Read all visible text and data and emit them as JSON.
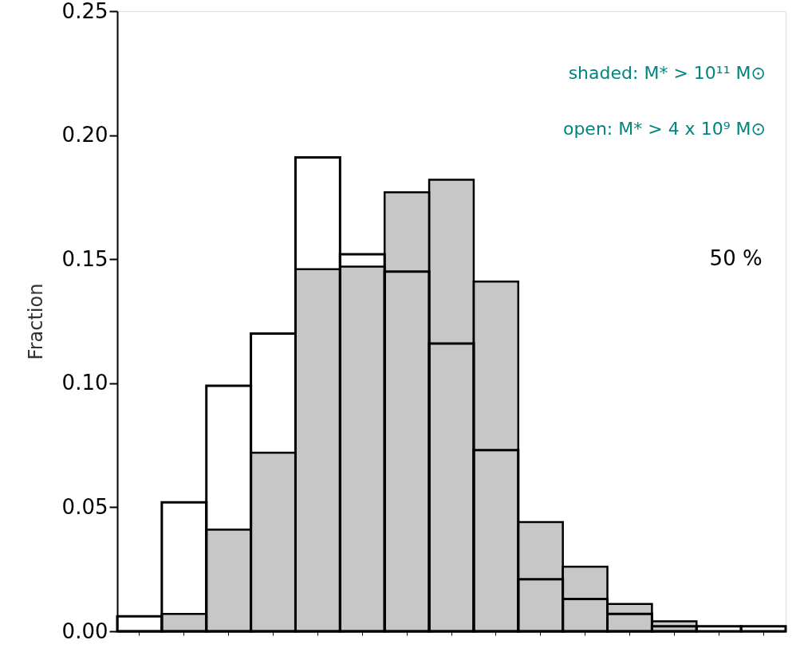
{
  "chart_data": {
    "type": "bar",
    "ylabel": "Fraction",
    "categories": [
      null,
      null,
      null,
      null,
      null,
      null,
      null,
      null,
      null,
      null,
      null,
      null,
      null,
      null,
      null
    ],
    "series": [
      {
        "color": "#000000",
        "values": [
          0,
          0.007,
          0.041,
          0.072,
          0.146,
          0.147,
          0.177,
          0.182,
          0.141,
          0.044,
          0.026,
          0.011,
          0.004,
          null,
          null
        ]
      },
      {
        "color": "#000000",
        "values": [
          0.006,
          0.052,
          0.099,
          0.12,
          0.191,
          0.152,
          0.145,
          0.116,
          0.073,
          0.021,
          0.013,
          0.007,
          0.002,
          0.002,
          0.002
        ]
      }
    ],
    "ylim": [
      0,
      0.25
    ],
    "yticks": [
      {
        "value": 0,
        "label": "0.00"
      },
      {
        "value": 0.05,
        "label": "0.05"
      },
      {
        "value": 0.1,
        "label": "0.10"
      },
      {
        "value": 0.15,
        "label": "0.15"
      },
      {
        "value": 0.2,
        "label": "0.20"
      },
      {
        "value": 0.25,
        "label": "0.25"
      }
    ],
    "tick_labels": "y",
    "grid": false,
    "annotations": [
      "shaded: M* > 10¹¹ M⊙",
      "open: M* > 4 x 10⁹ M⊙",
      "50 %"
    ]
  }
}
